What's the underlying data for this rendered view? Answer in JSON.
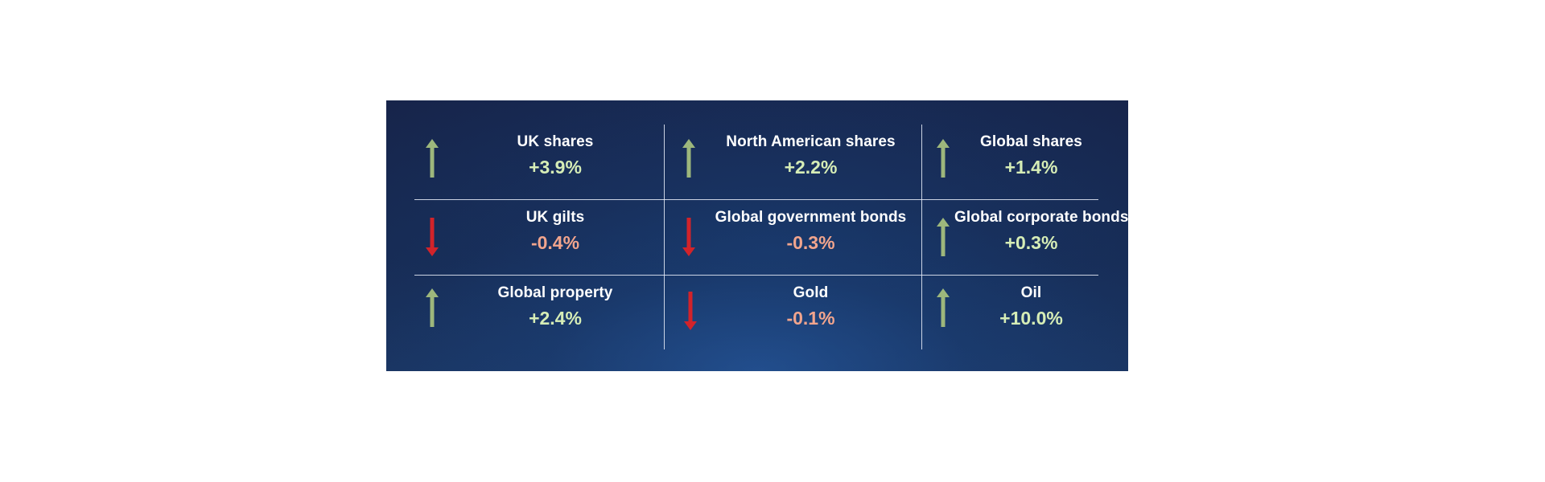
{
  "colors": {
    "up_arrow": "#9db77c",
    "down_arrow": "#d2232a",
    "up_value": "#d6edb6",
    "down_value": "#f2a58d",
    "background": "#172a52"
  },
  "cells": [
    {
      "label": "UK shares",
      "value": "+3.9%",
      "direction": "up",
      "icon": "arrow-up-icon"
    },
    {
      "label": "North American shares",
      "value": "+2.2%",
      "direction": "up",
      "icon": "arrow-up-icon"
    },
    {
      "label": "Global shares",
      "value": "+1.4%",
      "direction": "up",
      "icon": "arrow-up-icon"
    },
    {
      "label": "UK gilts",
      "value": "-0.4%",
      "direction": "down",
      "icon": "arrow-down-icon"
    },
    {
      "label": "Global government bonds",
      "value": "-0.3%",
      "direction": "down",
      "icon": "arrow-down-icon"
    },
    {
      "label": "Global corporate bonds",
      "value": "+0.3%",
      "direction": "up",
      "icon": "arrow-up-icon"
    },
    {
      "label": "Global property",
      "value": "+2.4%",
      "direction": "up",
      "icon": "arrow-up-icon"
    },
    {
      "label": "Gold",
      "value": "-0.1%",
      "direction": "down",
      "icon": "arrow-down-icon"
    },
    {
      "label": "Oil",
      "value": "+10.0%",
      "direction": "up",
      "icon": "arrow-up-icon"
    }
  ]
}
